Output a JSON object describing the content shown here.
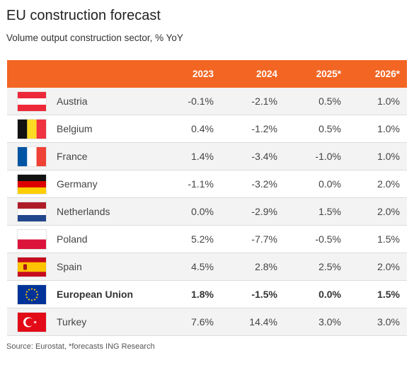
{
  "title": "EU construction forecast",
  "subtitle": "Volume output construction sector, % YoY",
  "source": "Source: Eurostat, *forecasts ING Research",
  "colors": {
    "header": "#f26522",
    "row_alt": "#f3f3f3"
  },
  "chart_data": {
    "type": "table",
    "columns": [
      "2023",
      "2024",
      "2025*",
      "2026*"
    ],
    "rows": [
      {
        "country": "Austria",
        "flag": "austria-flag",
        "values": [
          "-0.1%",
          "-2.1%",
          "0.5%",
          "1.0%"
        ]
      },
      {
        "country": "Belgium",
        "flag": "belgium-flag",
        "values": [
          "0.4%",
          "-1.2%",
          "0.5%",
          "1.0%"
        ]
      },
      {
        "country": "France",
        "flag": "france-flag",
        "values": [
          "1.4%",
          "-3.4%",
          "-1.0%",
          "1.0%"
        ]
      },
      {
        "country": "Germany",
        "flag": "germany-flag",
        "values": [
          "-1.1%",
          "-3.2%",
          "0.0%",
          "2.0%"
        ]
      },
      {
        "country": "Netherlands",
        "flag": "netherlands-flag",
        "values": [
          "0.0%",
          "-2.9%",
          "1.5%",
          "2.0%"
        ]
      },
      {
        "country": "Poland",
        "flag": "poland-flag",
        "values": [
          "5.2%",
          "-7.7%",
          "-0.5%",
          "1.5%"
        ]
      },
      {
        "country": "Spain",
        "flag": "spain-flag",
        "values": [
          "4.5%",
          "2.8%",
          "2.5%",
          "2.0%"
        ]
      },
      {
        "country": "European Union",
        "flag": "eu-flag",
        "bold": true,
        "values": [
          "1.8%",
          "-1.5%",
          "0.0%",
          "1.5%"
        ]
      },
      {
        "country": "Turkey",
        "flag": "turkey-flag",
        "values": [
          "7.6%",
          "14.4%",
          "3.0%",
          "3.0%"
        ]
      }
    ]
  }
}
